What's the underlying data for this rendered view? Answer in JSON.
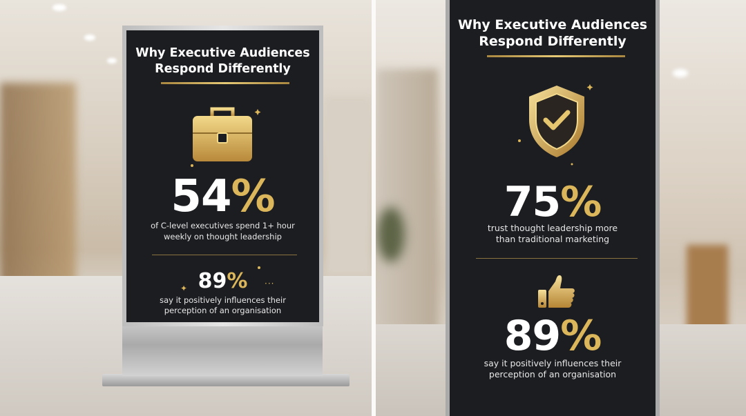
{
  "left_sign": {
    "title_line1": "Why Executive Audiences",
    "title_line2": "Respond Differently",
    "stat1": {
      "number": "54",
      "unit": "%",
      "line1": "of C-level executives spend 1+ hour",
      "line2": "weekly on thought leadership"
    },
    "stat2": {
      "number": "89",
      "unit": "%",
      "line1": "say it positively influences their",
      "line2": "perception of an organisation"
    }
  },
  "right_sign": {
    "title_line1": "Why Executive Audiences",
    "title_line2": "Respond Differently",
    "stat1": {
      "number": "75",
      "unit": "%",
      "line1": "trust thought leadership more",
      "line2": "than traditional marketing"
    },
    "stat2": {
      "number": "89",
      "unit": "%",
      "line1": "say it positively influences their",
      "line2": "perception of an organisation"
    }
  }
}
